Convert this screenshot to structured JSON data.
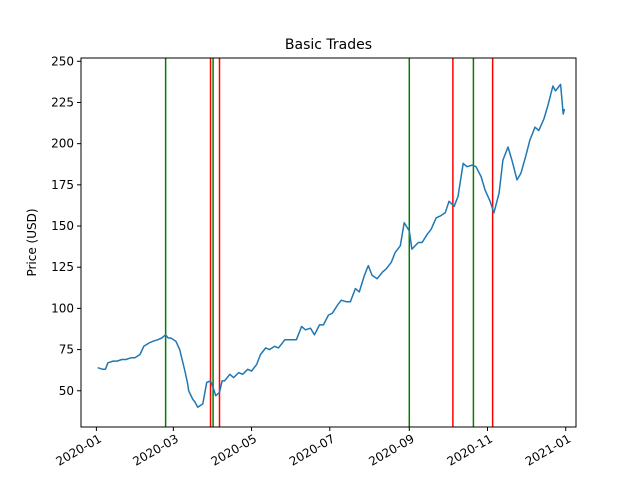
{
  "chart_data": {
    "type": "line",
    "title": "Basic Trades",
    "xlabel": "",
    "ylabel": "Price (USD)",
    "xlim": [
      "2019-12-20",
      "2021-01-09"
    ],
    "ylim": [
      28,
      252
    ],
    "xticks": [
      "2020-01",
      "2020-03",
      "2020-05",
      "2020-07",
      "2020-09",
      "2020-11",
      "2021-01"
    ],
    "xtick_dates": [
      "2020-01-01",
      "2020-03-01",
      "2020-05-01",
      "2020-07-01",
      "2020-09-01",
      "2020-11-01",
      "2021-01-01"
    ],
    "yticks": [
      50,
      75,
      100,
      125,
      150,
      175,
      200,
      225,
      250
    ],
    "grid": false,
    "series": [
      {
        "color": "#1f77b4",
        "points": [
          [
            "2020-01-02",
            64
          ],
          [
            "2020-01-06",
            63
          ],
          [
            "2020-01-08",
            63
          ],
          [
            "2020-01-10",
            67
          ],
          [
            "2020-01-14",
            68
          ],
          [
            "2020-01-17",
            68
          ],
          [
            "2020-01-21",
            69
          ],
          [
            "2020-01-24",
            69
          ],
          [
            "2020-01-28",
            70
          ],
          [
            "2020-01-31",
            70
          ],
          [
            "2020-02-04",
            72
          ],
          [
            "2020-02-07",
            77
          ],
          [
            "2020-02-11",
            79
          ],
          [
            "2020-02-14",
            80
          ],
          [
            "2020-02-18",
            81
          ],
          [
            "2020-02-21",
            82
          ],
          [
            "2020-02-24",
            84
          ],
          [
            "2020-02-26",
            82
          ],
          [
            "2020-02-28",
            82
          ],
          [
            "2020-03-03",
            80
          ],
          [
            "2020-03-06",
            75
          ],
          [
            "2020-03-10",
            62
          ],
          [
            "2020-03-12",
            55
          ],
          [
            "2020-03-13",
            50
          ],
          [
            "2020-03-16",
            45
          ],
          [
            "2020-03-18",
            43
          ],
          [
            "2020-03-20",
            40
          ],
          [
            "2020-03-24",
            42
          ],
          [
            "2020-03-27",
            55
          ],
          [
            "2020-03-30",
            56
          ],
          [
            "2020-04-01",
            52
          ],
          [
            "2020-04-03",
            47
          ],
          [
            "2020-04-06",
            49
          ],
          [
            "2020-04-08",
            56
          ],
          [
            "2020-04-10",
            56
          ],
          [
            "2020-04-14",
            60
          ],
          [
            "2020-04-17",
            58
          ],
          [
            "2020-04-21",
            61
          ],
          [
            "2020-04-24",
            60
          ],
          [
            "2020-04-28",
            63
          ],
          [
            "2020-05-01",
            62
          ],
          [
            "2020-05-05",
            66
          ],
          [
            "2020-05-08",
            72
          ],
          [
            "2020-05-12",
            76
          ],
          [
            "2020-05-15",
            75
          ],
          [
            "2020-05-19",
            77
          ],
          [
            "2020-05-22",
            76
          ],
          [
            "2020-05-27",
            81
          ],
          [
            "2020-06-01",
            81
          ],
          [
            "2020-06-05",
            81
          ],
          [
            "2020-06-09",
            89
          ],
          [
            "2020-06-12",
            87
          ],
          [
            "2020-06-16",
            88
          ],
          [
            "2020-06-19",
            84
          ],
          [
            "2020-06-23",
            90
          ],
          [
            "2020-06-26",
            90
          ],
          [
            "2020-06-30",
            96
          ],
          [
            "2020-07-03",
            97
          ],
          [
            "2020-07-07",
            102
          ],
          [
            "2020-07-10",
            105
          ],
          [
            "2020-07-14",
            104
          ],
          [
            "2020-07-17",
            104
          ],
          [
            "2020-07-21",
            112
          ],
          [
            "2020-07-24",
            110
          ],
          [
            "2020-07-28",
            120
          ],
          [
            "2020-07-31",
            126
          ],
          [
            "2020-08-03",
            120
          ],
          [
            "2020-08-07",
            118
          ],
          [
            "2020-08-11",
            122
          ],
          [
            "2020-08-14",
            124
          ],
          [
            "2020-08-18",
            128
          ],
          [
            "2020-08-21",
            134
          ],
          [
            "2020-08-25",
            138
          ],
          [
            "2020-08-28",
            152
          ],
          [
            "2020-09-01",
            147
          ],
          [
            "2020-09-03",
            136
          ],
          [
            "2020-09-08",
            140
          ],
          [
            "2020-09-11",
            140
          ],
          [
            "2020-09-15",
            145
          ],
          [
            "2020-09-18",
            148
          ],
          [
            "2020-09-22",
            155
          ],
          [
            "2020-09-25",
            156
          ],
          [
            "2020-09-29",
            158
          ],
          [
            "2020-10-02",
            165
          ],
          [
            "2020-10-06",
            162
          ],
          [
            "2020-10-09",
            168
          ],
          [
            "2020-10-13",
            188
          ],
          [
            "2020-10-16",
            186
          ],
          [
            "2020-10-20",
            187
          ],
          [
            "2020-10-23",
            186
          ],
          [
            "2020-10-27",
            180
          ],
          [
            "2020-10-30",
            172
          ],
          [
            "2020-11-03",
            165
          ],
          [
            "2020-11-06",
            158
          ],
          [
            "2020-11-10",
            170
          ],
          [
            "2020-11-13",
            190
          ],
          [
            "2020-11-17",
            198
          ],
          [
            "2020-11-20",
            190
          ],
          [
            "2020-11-24",
            178
          ],
          [
            "2020-11-27",
            182
          ],
          [
            "2020-12-01",
            193
          ],
          [
            "2020-12-04",
            202
          ],
          [
            "2020-12-08",
            210
          ],
          [
            "2020-12-11",
            208
          ],
          [
            "2020-12-15",
            215
          ],
          [
            "2020-12-18",
            223
          ],
          [
            "2020-12-22",
            235
          ],
          [
            "2020-12-24",
            232
          ],
          [
            "2020-12-28",
            236
          ],
          [
            "2020-12-30",
            218
          ],
          [
            "2020-12-31",
            221
          ]
        ]
      }
    ],
    "buy_lines": {
      "color": "#008000",
      "dates": [
        "2020-02-24",
        "2020-04-01",
        "2020-09-01",
        "2020-10-21"
      ]
    },
    "sell_lines": {
      "color": "#ff0000",
      "dates": [
        "2020-03-30",
        "2020-04-06",
        "2020-10-05",
        "2020-11-05"
      ]
    },
    "line_color": "#1f77b4"
  }
}
